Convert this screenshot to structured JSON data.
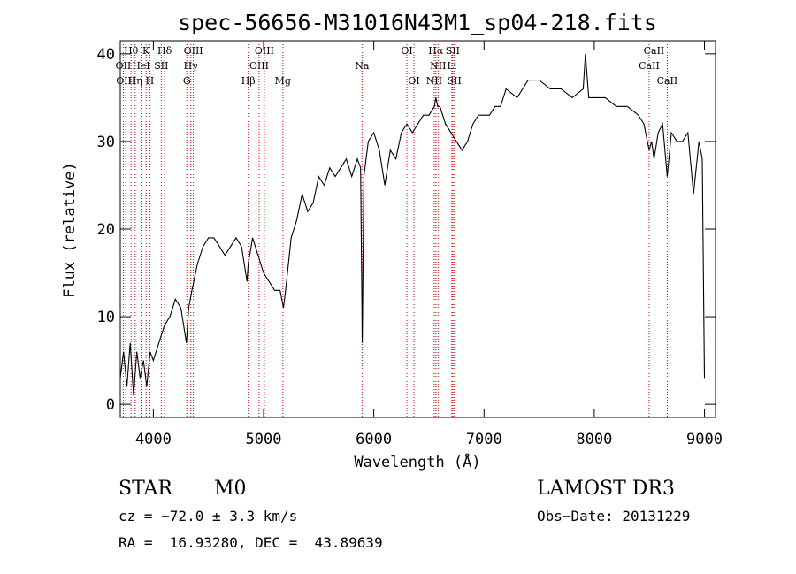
{
  "chart_data": {
    "type": "line",
    "title": "spec-56656-M31016N43M1_sp04-218.fits",
    "xlabel": "Wavelength (Å)",
    "ylabel": "Flux (relative)",
    "xlim": [
      3700,
      9100
    ],
    "ylim": [
      -1.5,
      41.5
    ],
    "x_ticks": [
      4000,
      5000,
      6000,
      7000,
      8000,
      9000
    ],
    "y_ticks": [
      0,
      10,
      20,
      30,
      40
    ],
    "grid": false,
    "series": [
      {
        "x": [
          3700,
          3730,
          3760,
          3790,
          3820,
          3850,
          3880,
          3910,
          3940,
          3970,
          4000,
          4050,
          4100,
          4150,
          4200,
          4250,
          4300,
          4320,
          4350,
          4400,
          4450,
          4500,
          4550,
          4600,
          4650,
          4700,
          4750,
          4800,
          4850,
          4860,
          4900,
          4950,
          5000,
          5050,
          5100,
          5150,
          5180,
          5200,
          5250,
          5300,
          5350,
          5400,
          5450,
          5500,
          5550,
          5600,
          5650,
          5700,
          5750,
          5800,
          5850,
          5880,
          5895,
          5910,
          5930,
          5950,
          6000,
          6050,
          6100,
          6150,
          6200,
          6250,
          6300,
          6350,
          6400,
          6450,
          6500,
          6550,
          6563,
          6580,
          6600,
          6650,
          6700,
          6750,
          6800,
          6850,
          6900,
          6950,
          7000,
          7050,
          7100,
          7150,
          7200,
          7300,
          7400,
          7500,
          7600,
          7700,
          7800,
          7900,
          7920,
          7950,
          8000,
          8100,
          8200,
          8300,
          8400,
          8450,
          8498,
          8520,
          8542,
          8580,
          8620,
          8662,
          8700,
          8750,
          8800,
          8850,
          8900,
          8950,
          8980,
          9000
        ],
        "y": [
          3,
          6,
          2,
          7,
          1,
          6,
          3,
          5,
          2,
          6,
          5,
          7,
          9,
          10,
          12,
          11,
          7,
          11,
          13,
          16,
          18,
          19,
          19,
          18,
          17,
          18,
          19,
          18,
          14,
          16,
          19,
          17,
          15,
          14,
          13,
          13,
          11,
          13,
          19,
          21,
          24,
          22,
          23,
          26,
          25,
          27,
          26,
          27,
          28,
          26,
          28,
          27,
          7,
          26,
          28,
          30,
          31,
          29,
          25,
          29,
          28,
          31,
          32,
          31,
          32,
          33,
          33,
          34,
          35,
          34,
          34,
          32,
          31,
          30,
          29,
          30,
          32,
          33,
          33,
          33,
          34,
          34,
          36,
          35,
          37,
          37,
          36,
          36,
          35,
          36,
          40,
          35,
          35,
          35,
          34,
          34,
          33,
          32,
          29,
          30,
          28,
          31,
          32,
          26,
          31,
          30,
          30,
          31,
          24,
          30,
          28,
          3
        ]
      }
    ],
    "line_labels": [
      {
        "text": "Hθ",
        "x": 3798,
        "row": 1
      },
      {
        "text": "K",
        "x": 3934,
        "row": 1
      },
      {
        "text": "Hδ",
        "x": 4102,
        "row": 1
      },
      {
        "text": "OIII",
        "x": 4363,
        "row": 1
      },
      {
        "text": "OIII",
        "x": 5007,
        "row": 1
      },
      {
        "text": "OI",
        "x": 6300,
        "row": 1
      },
      {
        "text": "Hα",
        "x": 6563,
        "row": 1
      },
      {
        "text": "SII",
        "x": 6716,
        "row": 1
      },
      {
        "text": "CaII",
        "x": 8542,
        "row": 1
      },
      {
        "text": "OII",
        "x": 3727,
        "row": 2
      },
      {
        "text": "HeI",
        "x": 3889,
        "row": 2
      },
      {
        "text": "SII",
        "x": 4072,
        "row": 2
      },
      {
        "text": "Hγ",
        "x": 4340,
        "row": 2
      },
      {
        "text": "OIII",
        "x": 4959,
        "row": 2
      },
      {
        "text": "Na",
        "x": 5893,
        "row": 2
      },
      {
        "text": "NII",
        "x": 6583,
        "row": 2
      },
      {
        "text": "Li",
        "x": 6708,
        "row": 2
      },
      {
        "text": "CaII",
        "x": 8498,
        "row": 2
      },
      {
        "text": "OIII",
        "x": 3750,
        "row": 3
      },
      {
        "text": "Hη",
        "x": 3835,
        "row": 3
      },
      {
        "text": "H",
        "x": 3968,
        "row": 3
      },
      {
        "text": "G",
        "x": 4304,
        "row": 3
      },
      {
        "text": "Hβ",
        "x": 4861,
        "row": 3
      },
      {
        "text": "Mg",
        "x": 5175,
        "row": 3
      },
      {
        "text": "OI",
        "x": 6364,
        "row": 3
      },
      {
        "text": "NII",
        "x": 6548,
        "row": 3
      },
      {
        "text": "SII",
        "x": 6731,
        "row": 3
      },
      {
        "text": "CaII",
        "x": 8662,
        "row": 3
      }
    ],
    "line_color": "#cc0000"
  },
  "info": {
    "class_label": "STAR",
    "subclass": "M0",
    "survey": "LAMOST DR3",
    "cz": "cz = −72.0 ± 3.3 km/s",
    "obs_date": "Obs−Date: 20131229",
    "radec": "RA =  16.93280, DEC =  43.89639"
  }
}
